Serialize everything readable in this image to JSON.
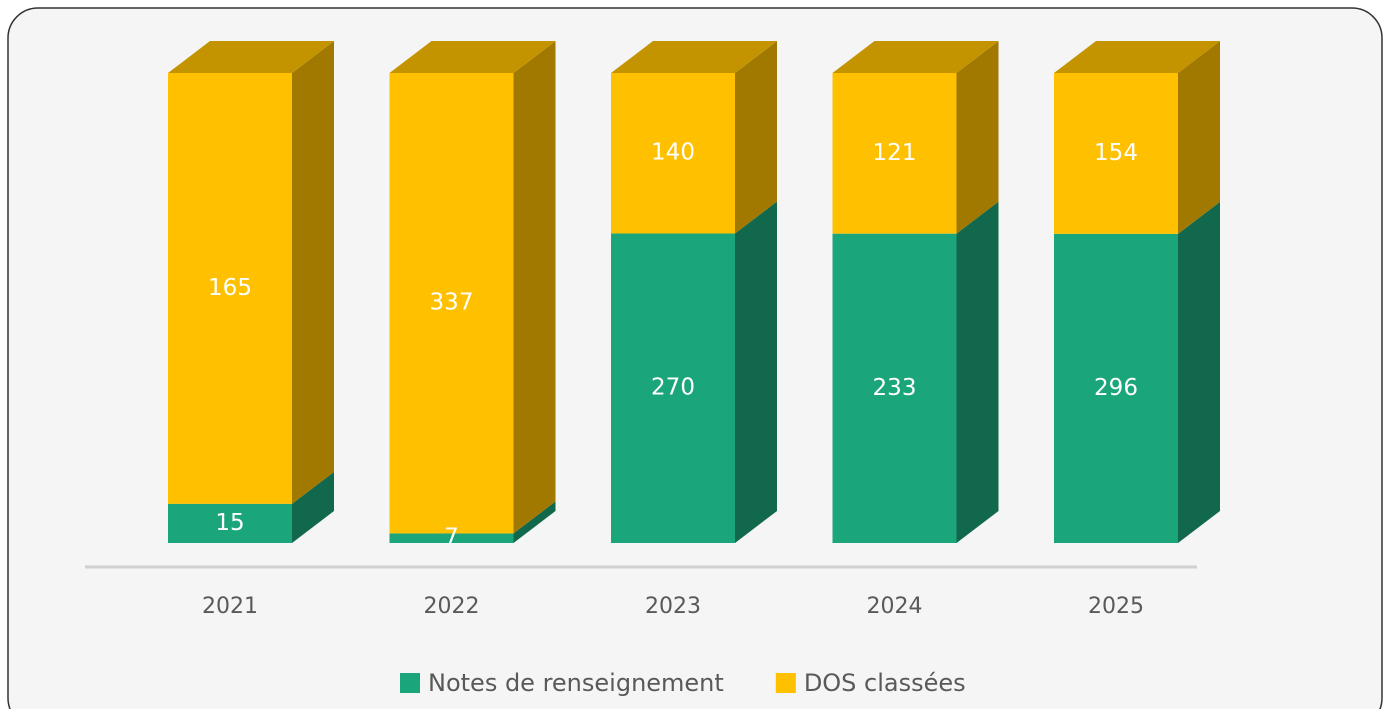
{
  "chart_data": {
    "type": "bar",
    "stacking": "percent",
    "categories": [
      "2021",
      "2022",
      "2023",
      "2024",
      "2025"
    ],
    "series": [
      {
        "name": "Notes de renseignement",
        "color": "#1ba57a",
        "values": [
          15,
          7,
          270,
          233,
          296
        ]
      },
      {
        "name": "DOS classées",
        "color": "#ffc000",
        "values": [
          165,
          337,
          140,
          121,
          154
        ]
      }
    ],
    "legend": "bottom"
  }
}
